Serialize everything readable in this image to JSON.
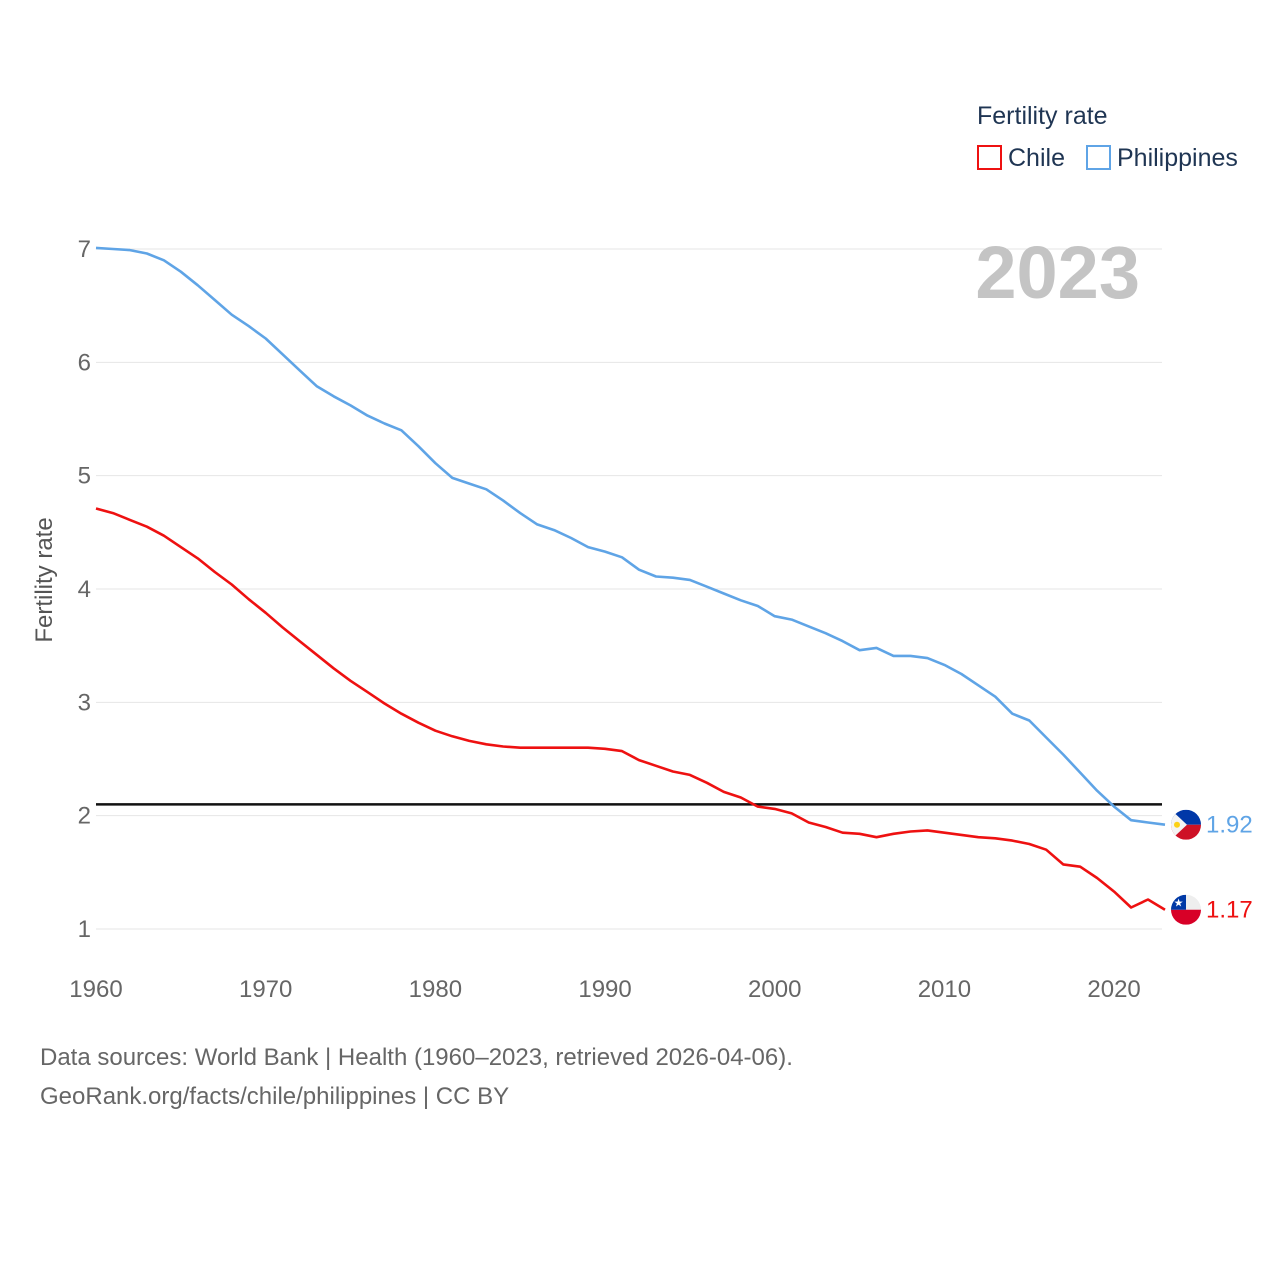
{
  "chart_data": {
    "type": "line",
    "ylabel": "Fertility rate",
    "xlabel": "",
    "xlim": [
      1960,
      2023
    ],
    "ylim": [
      0.85,
      7.25
    ],
    "x_ticks": [
      1960,
      1970,
      1980,
      1990,
      2000,
      2010,
      2020
    ],
    "y_ticks": [
      1,
      2,
      3,
      4,
      5,
      6,
      7
    ],
    "year_label": "2023",
    "legend": {
      "title": "Fertility rate",
      "position": "top-right"
    },
    "reference_line": {
      "value": 2.1
    },
    "series": [
      {
        "name": "Chile",
        "color": "#ee1111",
        "end_label": "1.17",
        "flag_icon": "chile-flag-icon",
        "points": [
          [
            1960,
            4.71
          ],
          [
            1961,
            4.67
          ],
          [
            1962,
            4.61
          ],
          [
            1963,
            4.55
          ],
          [
            1964,
            4.47
          ],
          [
            1965,
            4.37
          ],
          [
            1966,
            4.27
          ],
          [
            1967,
            4.15
          ],
          [
            1968,
            4.04
          ],
          [
            1969,
            3.91
          ],
          [
            1970,
            3.79
          ],
          [
            1971,
            3.66
          ],
          [
            1972,
            3.54
          ],
          [
            1973,
            3.42
          ],
          [
            1974,
            3.3
          ],
          [
            1975,
            3.19
          ],
          [
            1976,
            3.09
          ],
          [
            1977,
            2.99
          ],
          [
            1978,
            2.9
          ],
          [
            1979,
            2.82
          ],
          [
            1980,
            2.75
          ],
          [
            1981,
            2.7
          ],
          [
            1982,
            2.66
          ],
          [
            1983,
            2.63
          ],
          [
            1984,
            2.61
          ],
          [
            1985,
            2.6
          ],
          [
            1986,
            2.6
          ],
          [
            1987,
            2.6
          ],
          [
            1988,
            2.6
          ],
          [
            1989,
            2.6
          ],
          [
            1990,
            2.59
          ],
          [
            1991,
            2.57
          ],
          [
            1992,
            2.49
          ],
          [
            1993,
            2.44
          ],
          [
            1994,
            2.39
          ],
          [
            1995,
            2.36
          ],
          [
            1996,
            2.29
          ],
          [
            1997,
            2.21
          ],
          [
            1998,
            2.16
          ],
          [
            1999,
            2.08
          ],
          [
            2000,
            2.06
          ],
          [
            2001,
            2.02
          ],
          [
            2002,
            1.94
          ],
          [
            2003,
            1.9
          ],
          [
            2004,
            1.85
          ],
          [
            2005,
            1.84
          ],
          [
            2006,
            1.81
          ],
          [
            2007,
            1.84
          ],
          [
            2008,
            1.86
          ],
          [
            2009,
            1.87
          ],
          [
            2010,
            1.85
          ],
          [
            2011,
            1.83
          ],
          [
            2012,
            1.81
          ],
          [
            2013,
            1.8
          ],
          [
            2014,
            1.78
          ],
          [
            2015,
            1.75
          ],
          [
            2016,
            1.7
          ],
          [
            2017,
            1.57
          ],
          [
            2018,
            1.55
          ],
          [
            2019,
            1.45
          ],
          [
            2020,
            1.33
          ],
          [
            2021,
            1.19
          ],
          [
            2022,
            1.26
          ],
          [
            2023,
            1.17
          ]
        ]
      },
      {
        "name": "Philippines",
        "color": "#5fa4e6",
        "end_label": "1.92",
        "flag_icon": "philippines-flag-icon",
        "points": [
          [
            1960,
            7.01
          ],
          [
            1961,
            7.0
          ],
          [
            1962,
            6.99
          ],
          [
            1963,
            6.96
          ],
          [
            1964,
            6.9
          ],
          [
            1965,
            6.8
          ],
          [
            1966,
            6.68
          ],
          [
            1967,
            6.55
          ],
          [
            1968,
            6.42
          ],
          [
            1969,
            6.32
          ],
          [
            1970,
            6.21
          ],
          [
            1971,
            6.07
          ],
          [
            1972,
            5.93
          ],
          [
            1973,
            5.79
          ],
          [
            1974,
            5.7
          ],
          [
            1975,
            5.62
          ],
          [
            1976,
            5.53
          ],
          [
            1977,
            5.46
          ],
          [
            1978,
            5.4
          ],
          [
            1979,
            5.26
          ],
          [
            1980,
            5.11
          ],
          [
            1981,
            4.98
          ],
          [
            1982,
            4.93
          ],
          [
            1983,
            4.88
          ],
          [
            1984,
            4.78
          ],
          [
            1985,
            4.67
          ],
          [
            1986,
            4.57
          ],
          [
            1987,
            4.52
          ],
          [
            1988,
            4.45
          ],
          [
            1989,
            4.37
          ],
          [
            1990,
            4.33
          ],
          [
            1991,
            4.28
          ],
          [
            1992,
            4.17
          ],
          [
            1993,
            4.11
          ],
          [
            1994,
            4.1
          ],
          [
            1995,
            4.08
          ],
          [
            1996,
            4.02
          ],
          [
            1997,
            3.96
          ],
          [
            1998,
            3.9
          ],
          [
            1999,
            3.85
          ],
          [
            2000,
            3.76
          ],
          [
            2001,
            3.73
          ],
          [
            2002,
            3.67
          ],
          [
            2003,
            3.61
          ],
          [
            2004,
            3.54
          ],
          [
            2005,
            3.46
          ],
          [
            2006,
            3.48
          ],
          [
            2007,
            3.41
          ],
          [
            2008,
            3.41
          ],
          [
            2009,
            3.39
          ],
          [
            2010,
            3.33
          ],
          [
            2011,
            3.25
          ],
          [
            2012,
            3.15
          ],
          [
            2013,
            3.05
          ],
          [
            2014,
            2.9
          ],
          [
            2015,
            2.84
          ],
          [
            2016,
            2.69
          ],
          [
            2017,
            2.54
          ],
          [
            2018,
            2.38
          ],
          [
            2019,
            2.22
          ],
          [
            2020,
            2.08
          ],
          [
            2021,
            1.96
          ],
          [
            2022,
            1.94
          ],
          [
            2023,
            1.92
          ]
        ]
      }
    ]
  },
  "footer": {
    "line1": "Data sources: World Bank | Health (1960–2023, retrieved 2026-04-06).",
    "line2": "GeoRank.org/facts/chile/philippines | CC BY"
  }
}
